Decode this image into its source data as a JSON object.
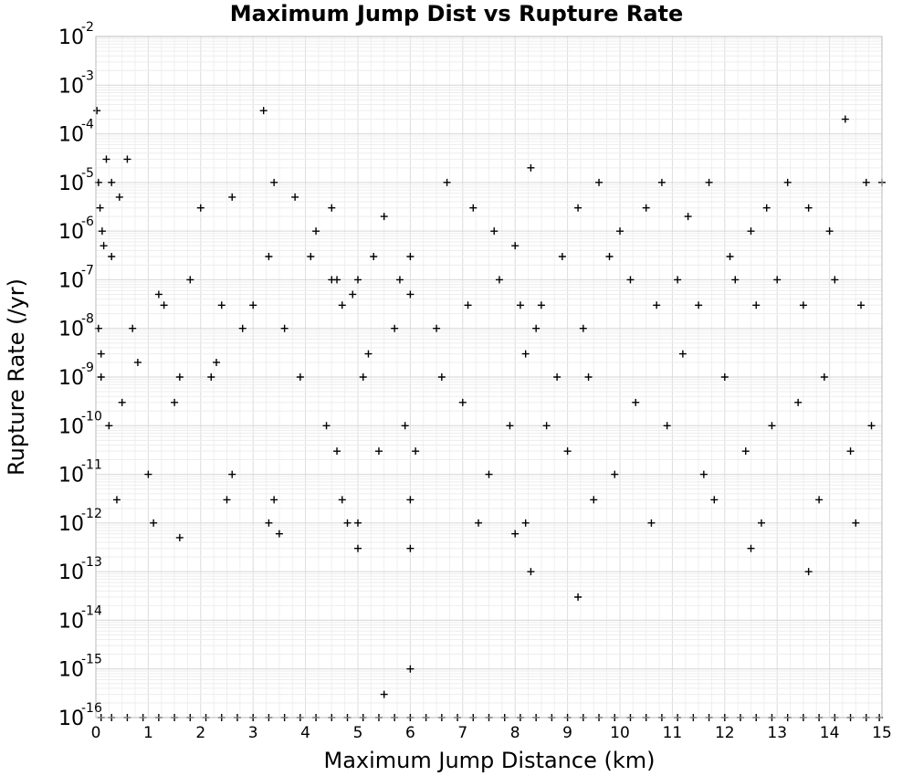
{
  "chart_data": {
    "type": "scatter",
    "title": "Maximum Jump Dist vs Rupture Rate",
    "xlabel": "Maximum Jump Distance (km)",
    "ylabel": "Rupture Rate (/yr)",
    "xlim": [
      0,
      15
    ],
    "ylim": [
      1e-16,
      0.01
    ],
    "yscale": "log",
    "grid": true,
    "marker": "+",
    "marker_color": "#000000",
    "x_ticks": [
      "0",
      "1",
      "2",
      "3",
      "4",
      "5",
      "6",
      "7",
      "8",
      "9",
      "10",
      "11",
      "12",
      "13",
      "14",
      "15"
    ],
    "y_ticks": [
      {
        "base": "10",
        "exp": "-16"
      },
      {
        "base": "10",
        "exp": "-15"
      },
      {
        "base": "10",
        "exp": "-14"
      },
      {
        "base": "10",
        "exp": "-13"
      },
      {
        "base": "10",
        "exp": "-12"
      },
      {
        "base": "10",
        "exp": "-11"
      },
      {
        "base": "10",
        "exp": "-10"
      },
      {
        "base": "10",
        "exp": "-9"
      },
      {
        "base": "10",
        "exp": "-8"
      },
      {
        "base": "10",
        "exp": "-7"
      },
      {
        "base": "10",
        "exp": "-6"
      },
      {
        "base": "10",
        "exp": "-5"
      },
      {
        "base": "10",
        "exp": "-4"
      },
      {
        "base": "10",
        "exp": "-3"
      },
      {
        "base": "10",
        "exp": "-2"
      }
    ],
    "series": [
      {
        "points_note_removed": true,
        "x": [
          0.02,
          0.05,
          0.08,
          0.12,
          0.15,
          0.2,
          0.3,
          0.45,
          0.6,
          0.05,
          0.1,
          0.25,
          0.8,
          1.2,
          1.6,
          2.0,
          2.3,
          2.6,
          3.2,
          3.4,
          3.8,
          4.2,
          4.5,
          4.6,
          4.9,
          5.2,
          5.5,
          5.8,
          6.0,
          6.7,
          7.2,
          7.6,
          8.0,
          8.3,
          8.5,
          8.8,
          9.2,
          9.6,
          10.0,
          10.5,
          10.8,
          11.3,
          11.7,
          12.1,
          12.5,
          12.8,
          13.2,
          13.6,
          14.0,
          14.3,
          14.7,
          15.0,
          0.1,
          0.5,
          1.0,
          1.5,
          2.2,
          2.6,
          3.0,
          3.4,
          3.9,
          4.4,
          4.6,
          4.8,
          5.1,
          5.4,
          5.9,
          6.1,
          6.6,
          7.0,
          7.5,
          7.9,
          8.2,
          8.6,
          9.0,
          9.4,
          9.9,
          10.3,
          10.9,
          11.2,
          11.6,
          12.0,
          12.4,
          12.9,
          13.4,
          13.9,
          14.4,
          14.8,
          0.3,
          0.7,
          1.3,
          1.8,
          2.4,
          2.8,
          3.3,
          3.6,
          4.1,
          4.5,
          4.7,
          5.0,
          5.3,
          5.7,
          6.0,
          6.5,
          7.1,
          7.7,
          8.1,
          8.4,
          8.9,
          9.3,
          9.8,
          10.2,
          10.7,
          11.1,
          11.5,
          12.2,
          12.6,
          13.0,
          13.5,
          14.1,
          14.6,
          0.4,
          1.1,
          2.5,
          3.3,
          4.7,
          5.0,
          6.0,
          7.3,
          8.0,
          8.2,
          9.5,
          10.6,
          11.8,
          12.7,
          13.8,
          14.5,
          1.6,
          3.5,
          5.0,
          6.0,
          8.3,
          9.2,
          12.5,
          13.6,
          5.5,
          6.0
        ],
        "y": [
          0.0003,
          1e-05,
          3e-06,
          1e-06,
          5e-07,
          3e-05,
          1e-05,
          5e-06,
          3e-05,
          1e-08,
          3e-09,
          1e-10,
          2e-09,
          5e-08,
          1e-09,
          3e-06,
          2e-09,
          5e-06,
          0.0003,
          1e-05,
          5e-06,
          1e-06,
          3e-06,
          1e-07,
          5e-08,
          3e-09,
          2e-06,
          1e-07,
          5e-08,
          1e-05,
          3e-06,
          1e-06,
          5e-07,
          2e-05,
          3e-08,
          1e-09,
          3e-06,
          1e-05,
          1e-06,
          3e-06,
          1e-05,
          2e-06,
          1e-05,
          3e-07,
          1e-06,
          3e-06,
          1e-05,
          3e-06,
          1e-06,
          0.0002,
          1e-05,
          1e-05,
          1e-09,
          3e-10,
          1e-11,
          3e-10,
          1e-09,
          1e-11,
          3e-08,
          3e-12,
          1e-09,
          1e-10,
          3e-11,
          1e-12,
          1e-09,
          3e-11,
          1e-10,
          3e-11,
          1e-09,
          3e-10,
          1e-11,
          1e-10,
          3e-09,
          1e-10,
          3e-11,
          1e-09,
          1e-11,
          3e-10,
          1e-10,
          3e-09,
          1e-11,
          1e-09,
          3e-11,
          1e-10,
          3e-10,
          1e-09,
          3e-11,
          1e-10,
          3e-07,
          1e-08,
          3e-08,
          1e-07,
          3e-08,
          1e-08,
          3e-07,
          1e-08,
          3e-07,
          1e-07,
          3e-08,
          1e-07,
          3e-07,
          1e-08,
          3e-07,
          1e-08,
          3e-08,
          1e-07,
          3e-08,
          1e-08,
          3e-07,
          1e-08,
          3e-07,
          1e-07,
          3e-08,
          1e-07,
          3e-08,
          1e-07,
          3e-08,
          1e-07,
          3e-08,
          1e-07,
          3e-08,
          3e-12,
          1e-12,
          3e-12,
          1e-12,
          3e-12,
          1e-12,
          3e-12,
          1e-12,
          6e-13,
          1e-12,
          3e-12,
          1e-12,
          3e-12,
          1e-12,
          3e-12,
          1e-12,
          5e-13,
          6e-13,
          3e-13,
          3e-13,
          1e-13,
          3e-14,
          3e-13,
          1e-13,
          3e-16,
          1e-15
        ]
      },
      {
        "x": [
          0.1,
          0.3,
          0.6,
          0.9,
          1.2,
          1.5,
          1.8,
          2.1,
          2.4,
          2.7,
          3.0,
          3.3,
          3.6,
          3.9,
          4.2,
          4.5,
          4.8,
          5.1,
          5.4,
          5.7,
          6.0,
          6.3,
          6.6,
          6.9,
          7.2,
          7.5,
          7.8,
          8.1,
          8.4,
          8.7,
          9.0,
          9.3,
          9.6,
          9.9,
          10.2,
          10.5,
          10.8,
          11.1,
          11.4,
          11.7,
          12.0,
          12.3,
          12.6,
          12.9,
          13.2,
          13.5,
          13.8,
          14.1,
          14.4,
          14.7,
          14.95
        ],
        "y": [
          1e-16,
          1e-16,
          1e-16,
          1e-16,
          1e-16,
          1e-16,
          1e-16,
          1e-16,
          1e-16,
          1e-16,
          1e-16,
          1e-16,
          1e-16,
          1e-16,
          1e-16,
          1e-16,
          1e-16,
          1e-16,
          1e-16,
          1e-16,
          1e-16,
          1e-16,
          1e-16,
          1e-16,
          1e-16,
          1e-16,
          1e-16,
          1e-16,
          1e-16,
          1e-16,
          1e-16,
          1e-16,
          1e-16,
          1e-16,
          1e-16,
          1e-16,
          1e-16,
          1e-16,
          1e-16,
          1e-16,
          1e-16,
          1e-16,
          1e-16,
          1e-16,
          1e-16,
          1e-16,
          1e-16,
          1e-16,
          1e-16,
          1e-16,
          1e-16
        ]
      }
    ]
  }
}
